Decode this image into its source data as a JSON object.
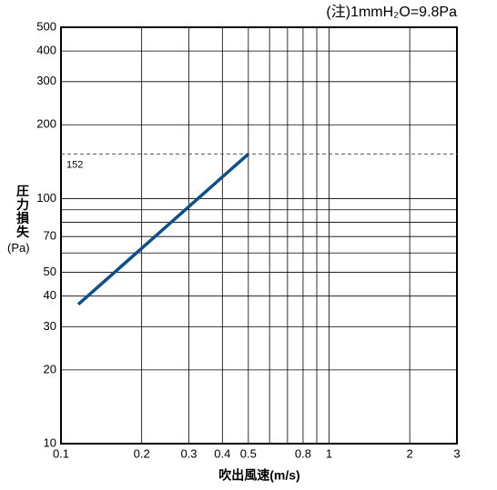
{
  "chart_data": {
    "type": "line",
    "annotation": "(注)1mmH₂O=9.8Pa",
    "x_label": "吹出風速(m/s)",
    "y_label": "圧力損失",
    "y_unit": "(Pa)",
    "log_x": true,
    "log_y": true,
    "grid": true,
    "xlim": [
      0.1,
      3
    ],
    "ylim": [
      10,
      500
    ],
    "xticks": [
      0.1,
      0.2,
      0.3,
      0.4,
      0.5,
      0.8,
      1,
      2,
      3
    ],
    "xminor": [
      0.6,
      0.7,
      0.9
    ],
    "yticks": [
      10,
      20,
      30,
      40,
      50,
      70,
      100,
      200,
      300,
      400,
      500
    ],
    "yminor": [
      60,
      80,
      90
    ],
    "hline": 152,
    "series": [
      {
        "color": "#0d4f8b",
        "x": [
          0.116,
          0.5
        ],
        "values": [
          37,
          152
        ]
      }
    ]
  }
}
